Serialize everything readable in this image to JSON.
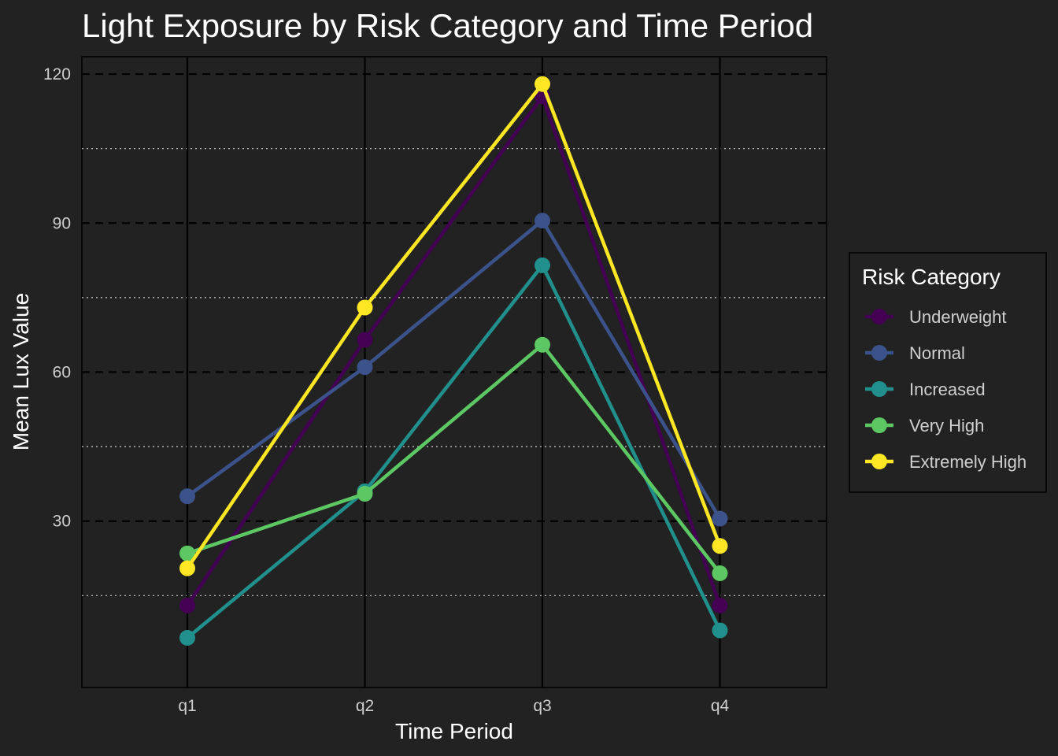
{
  "chart_data": {
    "type": "line",
    "title": "Light Exposure by Risk Category and Time Period",
    "xlabel": "Time Period",
    "ylabel": "Mean Lux Value",
    "categories": [
      "q1",
      "q2",
      "q3",
      "q4"
    ],
    "ylim": [
      -3.5,
      123.5
    ],
    "yticks": [
      30,
      60,
      90,
      120
    ],
    "y_minor_ticks": [
      15,
      45,
      75,
      105
    ],
    "grid": true,
    "legend": {
      "title": "Risk Category",
      "position": "right"
    },
    "series": [
      {
        "name": "Underweight",
        "color": "#440154",
        "values": [
          13,
          66.5,
          115.5,
          13
        ]
      },
      {
        "name": "Normal",
        "color": "#3b528b",
        "values": [
          35,
          61,
          90.5,
          30.5
        ]
      },
      {
        "name": "Increased",
        "color": "#21908c",
        "values": [
          6.5,
          36,
          81.5,
          8
        ]
      },
      {
        "name": "Very High",
        "color": "#5dc863",
        "values": [
          23.5,
          35.5,
          65.5,
          19.5
        ]
      },
      {
        "name": "Extremely High",
        "color": "#fde725",
        "values": [
          20.5,
          73,
          118,
          25
        ]
      }
    ]
  }
}
